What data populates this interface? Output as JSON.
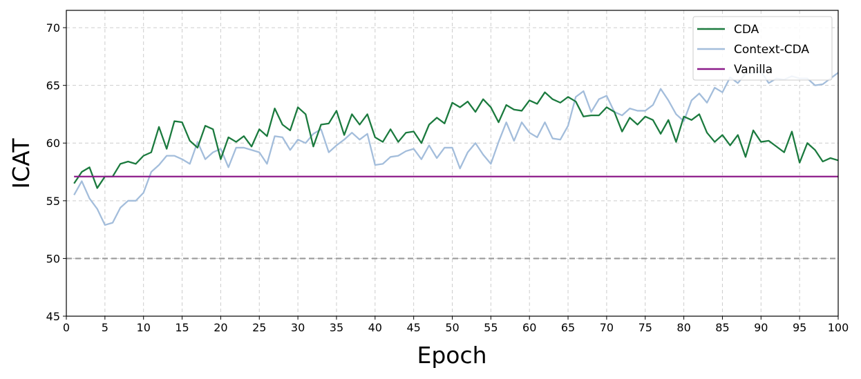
{
  "chart_data": {
    "type": "line",
    "xlabel": "Epoch",
    "ylabel": "ICAT",
    "xlim": [
      0,
      100
    ],
    "ylim": [
      45,
      71.5
    ],
    "x_ticks": [
      0,
      5,
      10,
      15,
      20,
      25,
      30,
      35,
      40,
      45,
      50,
      55,
      60,
      65,
      70,
      75,
      80,
      85,
      90,
      95,
      100
    ],
    "y_ticks": [
      45,
      50,
      55,
      60,
      65,
      70
    ],
    "grid": true,
    "legend_position": "top-right",
    "reference_line": {
      "y": 50,
      "style": "dashed",
      "color": "#999999"
    },
    "x": [
      1,
      2,
      3,
      4,
      5,
      6,
      7,
      8,
      9,
      10,
      11,
      12,
      13,
      14,
      15,
      16,
      17,
      18,
      19,
      20,
      21,
      22,
      23,
      24,
      25,
      26,
      27,
      28,
      29,
      30,
      31,
      32,
      33,
      34,
      35,
      36,
      37,
      38,
      39,
      40,
      41,
      42,
      43,
      44,
      45,
      46,
      47,
      48,
      49,
      50,
      51,
      52,
      53,
      54,
      55,
      56,
      57,
      58,
      59,
      60,
      61,
      62,
      63,
      64,
      65,
      66,
      67,
      68,
      69,
      70,
      71,
      72,
      73,
      74,
      75,
      76,
      77,
      78,
      79,
      80,
      81,
      82,
      83,
      84,
      85,
      86,
      87,
      88,
      89,
      90,
      91,
      92,
      93,
      94,
      95,
      96,
      97,
      98,
      99,
      100
    ],
    "series": [
      {
        "name": "CDA",
        "color": "#1b7a3e",
        "values": [
          56.5,
          57.5,
          57.9,
          56.1,
          57.1,
          57.1,
          58.2,
          58.4,
          58.2,
          58.9,
          59.2,
          61.4,
          59.5,
          61.9,
          61.8,
          60.2,
          59.6,
          61.5,
          61.2,
          58.6,
          60.5,
          60.1,
          60.6,
          59.7,
          61.2,
          60.6,
          63.0,
          61.6,
          61.1,
          63.1,
          62.5,
          59.7,
          61.6,
          61.7,
          62.8,
          60.7,
          62.5,
          61.6,
          62.5,
          60.5,
          60.1,
          61.2,
          60.1,
          60.9,
          61.0,
          60.0,
          61.6,
          62.2,
          61.7,
          63.5,
          63.1,
          63.6,
          62.7,
          63.8,
          63.1,
          61.8,
          63.3,
          62.9,
          62.8,
          63.7,
          63.4,
          64.4,
          63.8,
          63.5,
          64.0,
          63.6,
          62.3,
          62.4,
          62.4,
          63.1,
          62.7,
          61.0,
          62.2,
          61.6,
          62.3,
          62.0,
          60.8,
          62.0,
          60.1,
          62.3,
          62.0,
          62.5,
          60.9,
          60.1,
          60.7,
          59.8,
          60.7,
          58.8,
          61.1,
          60.1,
          60.2,
          59.7,
          59.2,
          61.0,
          58.3,
          60.0,
          59.4,
          58.4,
          58.7,
          58.5
        ]
      },
      {
        "name": "Context-CDA",
        "color": "#a3bddb",
        "values": [
          55.5,
          56.7,
          55.2,
          54.3,
          52.9,
          53.1,
          54.4,
          55.0,
          55.0,
          55.7,
          57.5,
          58.1,
          58.9,
          58.9,
          58.6,
          58.2,
          60.1,
          58.6,
          59.2,
          59.5,
          57.9,
          59.6,
          59.6,
          59.4,
          59.2,
          58.2,
          60.6,
          60.5,
          59.4,
          60.3,
          60.0,
          60.8,
          61.2,
          59.2,
          59.8,
          60.3,
          60.9,
          60.3,
          60.8,
          58.1,
          58.2,
          58.8,
          58.9,
          59.3,
          59.5,
          58.6,
          59.8,
          58.7,
          59.6,
          59.6,
          57.8,
          59.2,
          60.0,
          59.0,
          58.2,
          60.1,
          61.8,
          60.2,
          61.8,
          60.9,
          60.5,
          61.8,
          60.4,
          60.3,
          61.5,
          64.0,
          64.5,
          62.7,
          63.8,
          64.1,
          62.7,
          62.4,
          63.0,
          62.8,
          62.8,
          63.3,
          64.7,
          63.7,
          62.5,
          61.9,
          63.7,
          64.3,
          63.5,
          64.8,
          64.4,
          65.7,
          65.2,
          66.0,
          66.1,
          66.2,
          65.2,
          65.6,
          65.5,
          65.8,
          65.6,
          65.6,
          65.0,
          65.1,
          65.6,
          66.1
        ]
      },
      {
        "name": "Vanilla",
        "color": "#8b1a89",
        "values": [
          57.1,
          57.1,
          57.1,
          57.1,
          57.1,
          57.1,
          57.1,
          57.1,
          57.1,
          57.1,
          57.1,
          57.1,
          57.1,
          57.1,
          57.1,
          57.1,
          57.1,
          57.1,
          57.1,
          57.1,
          57.1,
          57.1,
          57.1,
          57.1,
          57.1,
          57.1,
          57.1,
          57.1,
          57.1,
          57.1,
          57.1,
          57.1,
          57.1,
          57.1,
          57.1,
          57.1,
          57.1,
          57.1,
          57.1,
          57.1,
          57.1,
          57.1,
          57.1,
          57.1,
          57.1,
          57.1,
          57.1,
          57.1,
          57.1,
          57.1,
          57.1,
          57.1,
          57.1,
          57.1,
          57.1,
          57.1,
          57.1,
          57.1,
          57.1,
          57.1,
          57.1,
          57.1,
          57.1,
          57.1,
          57.1,
          57.1,
          57.1,
          57.1,
          57.1,
          57.1,
          57.1,
          57.1,
          57.1,
          57.1,
          57.1,
          57.1,
          57.1,
          57.1,
          57.1,
          57.1,
          57.1,
          57.1,
          57.1,
          57.1,
          57.1,
          57.1,
          57.1,
          57.1,
          57.1,
          57.1,
          57.1,
          57.1,
          57.1,
          57.1,
          57.1,
          57.1,
          57.1,
          57.1,
          57.1,
          57.1
        ]
      }
    ]
  }
}
